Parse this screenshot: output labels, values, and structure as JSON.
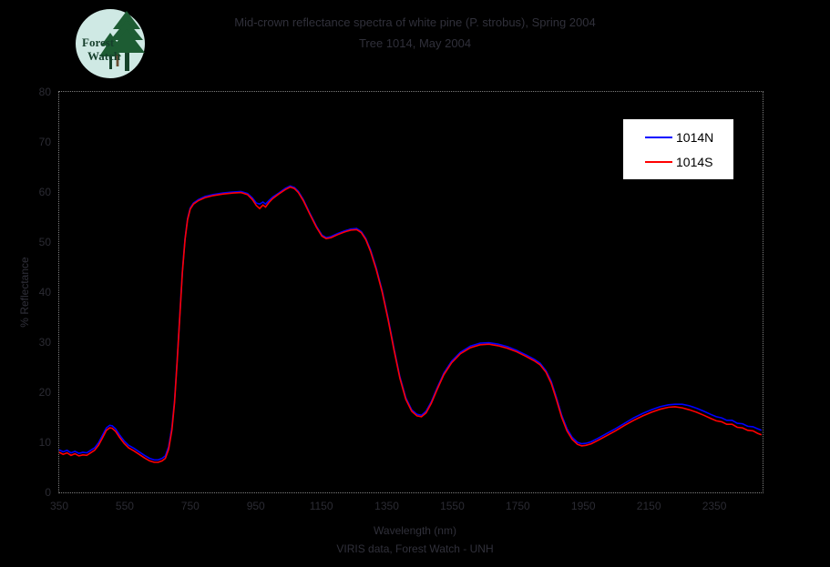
{
  "page": {
    "background": "#000000",
    "faint_text_color": "#30303a",
    "frame_color": "#7d7d7d"
  },
  "logo": {
    "line1": "Forest",
    "line2": "Watch",
    "circle_color": "#cfe9e4",
    "tree_color": "#1d5c33",
    "trunk_color": "#16422a",
    "figure_color": "#6b4f35",
    "text_color": "#163f2c"
  },
  "legend": {
    "background": "#ffffff",
    "border": "#000000"
  },
  "chart_data": {
    "type": "line",
    "title": "Mid-crown reflectance spectra of white pine (P. strobus), Spring 2004",
    "subtitle": "Tree 1014, May 2004",
    "xlabel": "Wavelength (nm)",
    "ylabel": "% Reflectance",
    "caption": "VIRIS data, Forest Watch - UNH",
    "xlim": [
      350,
      2500
    ],
    "ylim": [
      0,
      80
    ],
    "xticks": [
      350,
      550,
      750,
      950,
      1150,
      1350,
      1550,
      1750,
      1950,
      2150,
      2350
    ],
    "yticks": [
      80,
      70,
      60,
      50,
      40,
      30,
      20,
      10,
      0
    ],
    "grid": false,
    "legend_position": "upper right",
    "series": [
      {
        "name": "1014N",
        "color": "#0000ff",
        "points": [
          [
            350,
            8.5
          ],
          [
            362,
            8.1
          ],
          [
            374,
            8.4
          ],
          [
            386,
            7.9
          ],
          [
            398,
            8.2
          ],
          [
            410,
            7.8
          ],
          [
            422,
            8.0
          ],
          [
            434,
            7.9
          ],
          [
            446,
            8.4
          ],
          [
            458,
            8.9
          ],
          [
            470,
            9.9
          ],
          [
            482,
            11.4
          ],
          [
            494,
            12.9
          ],
          [
            504,
            13.4
          ],
          [
            512,
            13.3
          ],
          [
            522,
            12.7
          ],
          [
            534,
            11.5
          ],
          [
            548,
            10.3
          ],
          [
            562,
            9.4
          ],
          [
            578,
            8.8
          ],
          [
            594,
            8.1
          ],
          [
            610,
            7.4
          ],
          [
            626,
            6.8
          ],
          [
            640,
            6.5
          ],
          [
            652,
            6.5
          ],
          [
            664,
            6.8
          ],
          [
            674,
            7.3
          ],
          [
            684,
            9.1
          ],
          [
            694,
            13.0
          ],
          [
            702,
            18.4
          ],
          [
            710,
            26.3
          ],
          [
            718,
            35.2
          ],
          [
            726,
            44.2
          ],
          [
            734,
            50.7
          ],
          [
            742,
            54.7
          ],
          [
            750,
            56.8
          ],
          [
            760,
            57.8
          ],
          [
            775,
            58.5
          ],
          [
            795,
            59.1
          ],
          [
            820,
            59.5
          ],
          [
            850,
            59.8
          ],
          [
            880,
            60.0
          ],
          [
            905,
            60.1
          ],
          [
            925,
            59.7
          ],
          [
            940,
            58.8
          ],
          [
            952,
            57.8
          ],
          [
            962,
            57.6
          ],
          [
            972,
            58.0
          ],
          [
            980,
            57.6
          ],
          [
            990,
            58.3
          ],
          [
            1002,
            59.0
          ],
          [
            1020,
            59.8
          ],
          [
            1040,
            60.7
          ],
          [
            1055,
            61.2
          ],
          [
            1068,
            60.9
          ],
          [
            1080,
            60.1
          ],
          [
            1095,
            58.5
          ],
          [
            1115,
            55.8
          ],
          [
            1135,
            53.2
          ],
          [
            1152,
            51.4
          ],
          [
            1165,
            50.9
          ],
          [
            1180,
            51.1
          ],
          [
            1200,
            51.7
          ],
          [
            1220,
            52.2
          ],
          [
            1240,
            52.6
          ],
          [
            1258,
            52.7
          ],
          [
            1272,
            52.1
          ],
          [
            1286,
            50.7
          ],
          [
            1300,
            48.5
          ],
          [
            1318,
            44.8
          ],
          [
            1336,
            40.3
          ],
          [
            1354,
            34.8
          ],
          [
            1372,
            28.8
          ],
          [
            1390,
            23.1
          ],
          [
            1408,
            18.9
          ],
          [
            1426,
            16.5
          ],
          [
            1442,
            15.6
          ],
          [
            1456,
            15.4
          ],
          [
            1470,
            16.2
          ],
          [
            1486,
            18.1
          ],
          [
            1504,
            20.9
          ],
          [
            1524,
            23.8
          ],
          [
            1548,
            26.2
          ],
          [
            1575,
            28.0
          ],
          [
            1605,
            29.2
          ],
          [
            1635,
            29.8
          ],
          [
            1662,
            29.9
          ],
          [
            1690,
            29.6
          ],
          [
            1718,
            29.1
          ],
          [
            1746,
            28.4
          ],
          [
            1774,
            27.5
          ],
          [
            1800,
            26.6
          ],
          [
            1818,
            25.8
          ],
          [
            1836,
            24.3
          ],
          [
            1852,
            22.2
          ],
          [
            1868,
            18.9
          ],
          [
            1884,
            15.4
          ],
          [
            1900,
            12.7
          ],
          [
            1916,
            11.0
          ],
          [
            1932,
            10.0
          ],
          [
            1945,
            9.7
          ],
          [
            1958,
            9.8
          ],
          [
            1974,
            10.1
          ],
          [
            1995,
            10.8
          ],
          [
            2020,
            11.7
          ],
          [
            2048,
            12.7
          ],
          [
            2076,
            13.8
          ],
          [
            2104,
            14.9
          ],
          [
            2132,
            15.8
          ],
          [
            2158,
            16.5
          ],
          [
            2184,
            17.1
          ],
          [
            2210,
            17.5
          ],
          [
            2230,
            17.6
          ],
          [
            2252,
            17.6
          ],
          [
            2274,
            17.3
          ],
          [
            2296,
            16.8
          ],
          [
            2318,
            16.2
          ],
          [
            2338,
            15.6
          ],
          [
            2356,
            15.1
          ],
          [
            2372,
            14.9
          ],
          [
            2388,
            14.4
          ],
          [
            2404,
            14.4
          ],
          [
            2420,
            13.8
          ],
          [
            2436,
            13.7
          ],
          [
            2452,
            13.2
          ],
          [
            2468,
            13.1
          ],
          [
            2482,
            12.7
          ],
          [
            2494,
            12.4
          ]
        ]
      },
      {
        "name": "1014S",
        "color": "#ff0000",
        "points": [
          [
            350,
            8.0
          ],
          [
            362,
            7.6
          ],
          [
            374,
            7.9
          ],
          [
            386,
            7.4
          ],
          [
            398,
            7.7
          ],
          [
            410,
            7.3
          ],
          [
            422,
            7.5
          ],
          [
            434,
            7.4
          ],
          [
            446,
            7.9
          ],
          [
            458,
            8.4
          ],
          [
            470,
            9.4
          ],
          [
            482,
            10.9
          ],
          [
            494,
            12.4
          ],
          [
            504,
            12.9
          ],
          [
            512,
            12.8
          ],
          [
            522,
            12.2
          ],
          [
            534,
            11.0
          ],
          [
            548,
            9.8
          ],
          [
            562,
            8.9
          ],
          [
            578,
            8.3
          ],
          [
            594,
            7.6
          ],
          [
            610,
            6.9
          ],
          [
            626,
            6.3
          ],
          [
            640,
            6.0
          ],
          [
            652,
            6.0
          ],
          [
            664,
            6.3
          ],
          [
            674,
            6.8
          ],
          [
            684,
            8.6
          ],
          [
            694,
            12.5
          ],
          [
            702,
            18.0
          ],
          [
            710,
            26.0
          ],
          [
            718,
            35.0
          ],
          [
            726,
            44.0
          ],
          [
            734,
            50.5
          ],
          [
            742,
            54.5
          ],
          [
            750,
            56.6
          ],
          [
            760,
            57.6
          ],
          [
            775,
            58.3
          ],
          [
            795,
            58.9
          ],
          [
            820,
            59.3
          ],
          [
            850,
            59.6
          ],
          [
            880,
            59.8
          ],
          [
            905,
            59.9
          ],
          [
            925,
            59.5
          ],
          [
            940,
            58.5
          ],
          [
            952,
            57.3
          ],
          [
            962,
            56.7
          ],
          [
            972,
            57.4
          ],
          [
            980,
            57.0
          ],
          [
            990,
            57.9
          ],
          [
            1002,
            58.7
          ],
          [
            1020,
            59.6
          ],
          [
            1040,
            60.5
          ],
          [
            1055,
            61.0
          ],
          [
            1068,
            60.7
          ],
          [
            1080,
            59.9
          ],
          [
            1095,
            58.3
          ],
          [
            1115,
            55.6
          ],
          [
            1135,
            53.0
          ],
          [
            1152,
            51.2
          ],
          [
            1165,
            50.7
          ],
          [
            1180,
            50.9
          ],
          [
            1200,
            51.5
          ],
          [
            1220,
            52.0
          ],
          [
            1240,
            52.4
          ],
          [
            1258,
            52.5
          ],
          [
            1272,
            51.9
          ],
          [
            1286,
            50.5
          ],
          [
            1300,
            48.2
          ],
          [
            1318,
            44.5
          ],
          [
            1336,
            40.0
          ],
          [
            1354,
            34.5
          ],
          [
            1372,
            28.5
          ],
          [
            1390,
            22.8
          ],
          [
            1408,
            18.6
          ],
          [
            1426,
            16.2
          ],
          [
            1442,
            15.3
          ],
          [
            1456,
            15.1
          ],
          [
            1470,
            15.9
          ],
          [
            1486,
            17.8
          ],
          [
            1504,
            20.6
          ],
          [
            1524,
            23.5
          ],
          [
            1548,
            25.9
          ],
          [
            1575,
            27.7
          ],
          [
            1605,
            28.9
          ],
          [
            1635,
            29.5
          ],
          [
            1662,
            29.6
          ],
          [
            1690,
            29.3
          ],
          [
            1718,
            28.8
          ],
          [
            1746,
            28.1
          ],
          [
            1774,
            27.2
          ],
          [
            1800,
            26.3
          ],
          [
            1818,
            25.5
          ],
          [
            1836,
            24.0
          ],
          [
            1852,
            21.8
          ],
          [
            1868,
            18.5
          ],
          [
            1884,
            15.0
          ],
          [
            1900,
            12.3
          ],
          [
            1916,
            10.6
          ],
          [
            1932,
            9.6
          ],
          [
            1945,
            9.3
          ],
          [
            1958,
            9.4
          ],
          [
            1974,
            9.7
          ],
          [
            1995,
            10.4
          ],
          [
            2020,
            11.3
          ],
          [
            2048,
            12.3
          ],
          [
            2076,
            13.4
          ],
          [
            2104,
            14.4
          ],
          [
            2132,
            15.3
          ],
          [
            2158,
            16.0
          ],
          [
            2184,
            16.6
          ],
          [
            2210,
            17.0
          ],
          [
            2230,
            17.1
          ],
          [
            2252,
            16.9
          ],
          [
            2274,
            16.5
          ],
          [
            2296,
            16.0
          ],
          [
            2318,
            15.4
          ],
          [
            2338,
            14.8
          ],
          [
            2356,
            14.3
          ],
          [
            2372,
            14.1
          ],
          [
            2388,
            13.6
          ],
          [
            2404,
            13.6
          ],
          [
            2420,
            13.0
          ],
          [
            2436,
            12.9
          ],
          [
            2452,
            12.4
          ],
          [
            2468,
            12.3
          ],
          [
            2482,
            11.8
          ],
          [
            2494,
            11.5
          ]
        ]
      }
    ]
  }
}
